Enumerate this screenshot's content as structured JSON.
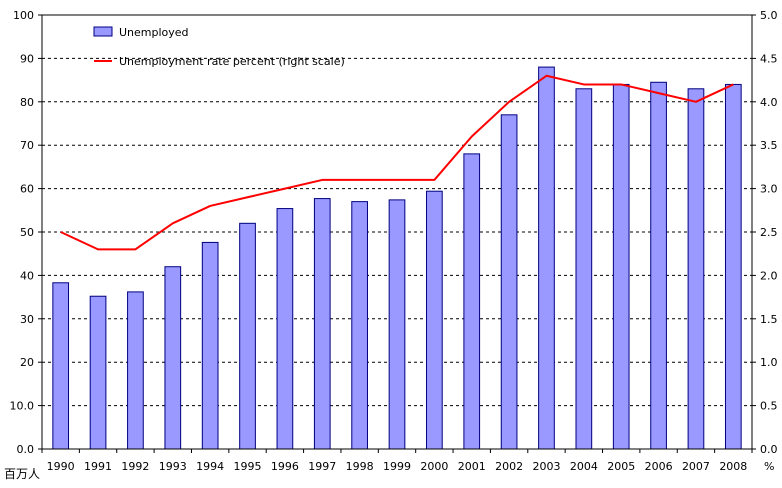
{
  "chart_data": {
    "type": "bar",
    "categories": [
      "1990",
      "1991",
      "1992",
      "1993",
      "1994",
      "1995",
      "1996",
      "1997",
      "1998",
      "1999",
      "2000",
      "2001",
      "2002",
      "2003",
      "2004",
      "2005",
      "2006",
      "2007",
      "2008"
    ],
    "series": [
      {
        "name": "Unemployed",
        "type": "bar",
        "axis": "left",
        "values": [
          38.3,
          35.2,
          36.2,
          42.0,
          47.6,
          52.0,
          55.4,
          57.7,
          57.0,
          57.4,
          59.4,
          68.0,
          77.0,
          88.0,
          83.0,
          84.0,
          84.5,
          83.0,
          84.0
        ]
      },
      {
        "name": "Unemployment rate percent (right scale)",
        "type": "line",
        "axis": "right",
        "values": [
          2.5,
          2.3,
          2.3,
          2.6,
          2.8,
          2.9,
          3.0,
          3.1,
          3.1,
          3.1,
          3.1,
          3.6,
          4.0,
          4.3,
          4.2,
          4.2,
          4.1,
          4.0,
          4.2
        ]
      }
    ],
    "left_axis": {
      "ylim": [
        0,
        100
      ],
      "ticks": [
        "0.0",
        "10.0",
        "20",
        "30",
        "40",
        "50",
        "60",
        "70",
        "80",
        "90",
        "100"
      ],
      "unit_label": "百万人"
    },
    "right_axis": {
      "ylim": [
        0,
        5.0
      ],
      "ticks": [
        "0.0",
        "0.5",
        "1.0",
        "1.5",
        "2.0",
        "2.5",
        "3.0",
        "3.5",
        "4.0",
        "4.5",
        "5.0"
      ],
      "unit_label": "%"
    },
    "grid": "horizontal dashed",
    "legend_position": "top-left",
    "colors": {
      "bar_fill": "#9999ff",
      "bar_stroke": "#000080",
      "line": "#ff0000"
    }
  }
}
